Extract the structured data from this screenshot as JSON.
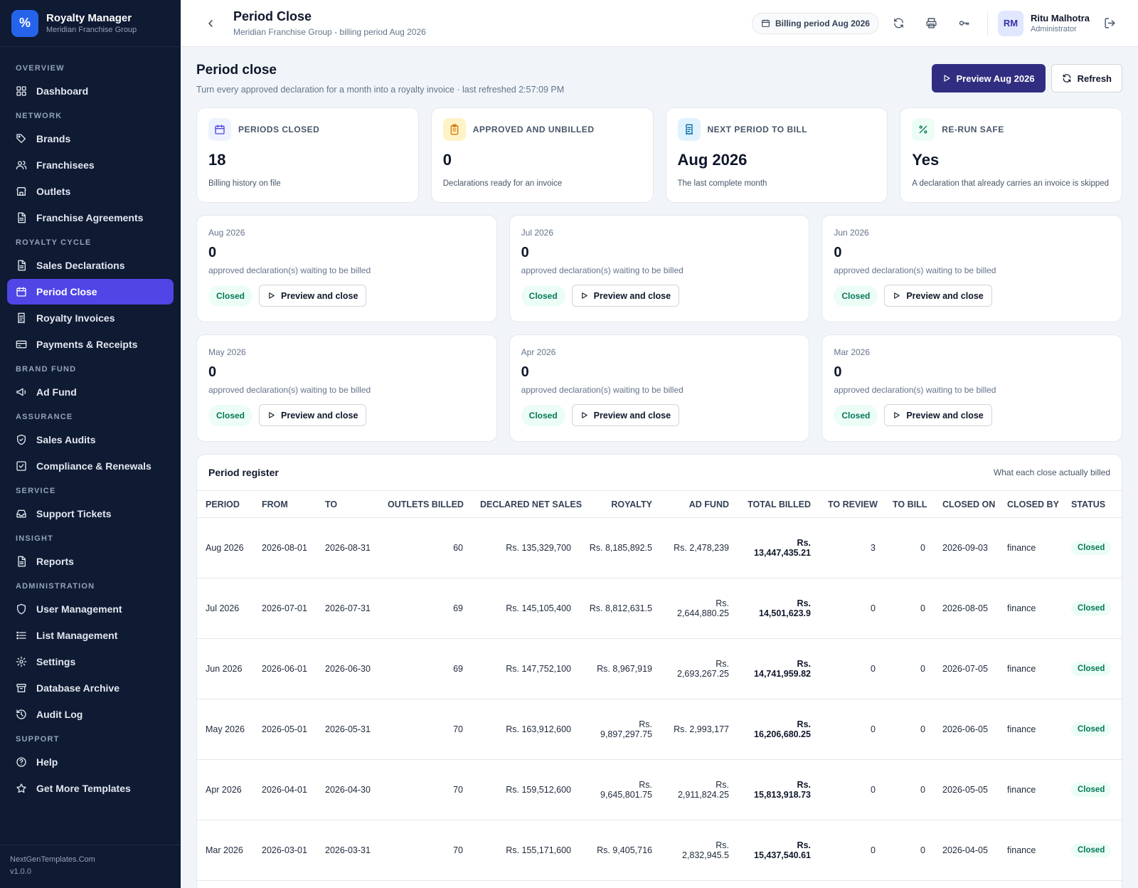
{
  "app": {
    "name": "Royalty Manager",
    "org": "Meridian Franchise Group",
    "logo_glyph": "%"
  },
  "sidebar": {
    "sections": [
      {
        "title": "OVERVIEW",
        "items": [
          {
            "label": "Dashboard",
            "icon": "grid-icon"
          }
        ]
      },
      {
        "title": "NETWORK",
        "items": [
          {
            "label": "Brands",
            "icon": "tag-icon"
          },
          {
            "label": "Franchisees",
            "icon": "users-icon"
          },
          {
            "label": "Outlets",
            "icon": "store-icon"
          },
          {
            "label": "Franchise Agreements",
            "icon": "document-icon"
          }
        ]
      },
      {
        "title": "ROYALTY CYCLE",
        "items": [
          {
            "label": "Sales Declarations",
            "icon": "document-icon"
          },
          {
            "label": "Period Close",
            "icon": "calendar-icon",
            "active": true
          },
          {
            "label": "Royalty Invoices",
            "icon": "receipt-icon"
          },
          {
            "label": "Payments & Receipts",
            "icon": "card-icon"
          }
        ]
      },
      {
        "title": "BRAND FUND",
        "items": [
          {
            "label": "Ad Fund",
            "icon": "megaphone-icon"
          }
        ]
      },
      {
        "title": "ASSURANCE",
        "items": [
          {
            "label": "Sales Audits",
            "icon": "shield-check-icon"
          },
          {
            "label": "Compliance & Renewals",
            "icon": "check-square-icon"
          }
        ]
      },
      {
        "title": "SERVICE",
        "items": [
          {
            "label": "Support Tickets",
            "icon": "inbox-icon"
          }
        ]
      },
      {
        "title": "INSIGHT",
        "items": [
          {
            "label": "Reports",
            "icon": "document-icon"
          }
        ]
      },
      {
        "title": "ADMINISTRATION",
        "items": [
          {
            "label": "User Management",
            "icon": "shield-icon"
          },
          {
            "label": "List Management",
            "icon": "list-icon"
          },
          {
            "label": "Settings",
            "icon": "gear-icon"
          },
          {
            "label": "Database Archive",
            "icon": "archive-icon"
          },
          {
            "label": "Audit Log",
            "icon": "history-icon"
          }
        ]
      },
      {
        "title": "SUPPORT",
        "items": [
          {
            "label": "Help",
            "icon": "help-icon"
          },
          {
            "label": "Get More Templates",
            "icon": "star-icon"
          }
        ]
      }
    ],
    "footer": {
      "site": "NextGenTemplates.Com",
      "version": "v1.0.0"
    }
  },
  "topbar": {
    "title": "Period Close",
    "subtitle": "Meridian Franchise Group - billing period Aug 2026",
    "period_pill": "Billing period Aug 2026",
    "user": {
      "initials": "RM",
      "name": "Ritu Malhotra",
      "role": "Administrator"
    }
  },
  "page": {
    "title": "Period close",
    "subtitle": "Turn every approved declaration for a month into a royalty invoice · last refreshed 2:57:09 PM",
    "preview_button": "Preview Aug 2026",
    "refresh_button": "Refresh"
  },
  "stats": [
    {
      "label": "PERIODS CLOSED",
      "value": "18",
      "note": "Billing history on file",
      "icon": "calendar-icon",
      "color": "#4f46e5",
      "bg": "#eef2ff"
    },
    {
      "label": "APPROVED AND UNBILLED",
      "value": "0",
      "note": "Declarations ready for an invoice",
      "icon": "clipboard-icon",
      "color": "#d97706",
      "bg": "#fef3c7"
    },
    {
      "label": "NEXT PERIOD TO BILL",
      "value": "Aug 2026",
      "note": "The last complete month",
      "icon": "receipt-icon",
      "color": "#0369a1",
      "bg": "#e0f2fe"
    },
    {
      "label": "RE-RUN SAFE",
      "value": "Yes",
      "note": "A declaration that already carries an invoice is skipped",
      "icon": "percent-icon",
      "color": "#047857",
      "bg": "#ecfdf5"
    }
  ],
  "period_cards": [
    {
      "period": "Aug 2026",
      "count": "0",
      "note": "approved declaration(s) waiting to be billed",
      "status": "Closed",
      "action": "Preview and close"
    },
    {
      "period": "Jul 2026",
      "count": "0",
      "note": "approved declaration(s) waiting to be billed",
      "status": "Closed",
      "action": "Preview and close"
    },
    {
      "period": "Jun 2026",
      "count": "0",
      "note": "approved declaration(s) waiting to be billed",
      "status": "Closed",
      "action": "Preview and close"
    },
    {
      "period": "May 2026",
      "count": "0",
      "note": "approved declaration(s) waiting to be billed",
      "status": "Closed",
      "action": "Preview and close"
    },
    {
      "period": "Apr 2026",
      "count": "0",
      "note": "approved declaration(s) waiting to be billed",
      "status": "Closed",
      "action": "Preview and close"
    },
    {
      "period": "Mar 2026",
      "count": "0",
      "note": "approved declaration(s) waiting to be billed",
      "status": "Closed",
      "action": "Preview and close"
    }
  ],
  "register": {
    "title": "Period register",
    "note": "What each close actually billed",
    "columns": [
      "PERIOD",
      "FROM",
      "TO",
      "OUTLETS BILLED",
      "DECLARED NET SALES",
      "ROYALTY",
      "AD FUND",
      "TOTAL BILLED",
      "TO REVIEW",
      "TO BILL",
      "CLOSED ON",
      "CLOSED BY",
      "STATUS"
    ],
    "rows": [
      {
        "period": "Aug 2026",
        "from": "2026-08-01",
        "to": "2026-08-31",
        "outlets": "60",
        "net_sales": "Rs. 135,329,700",
        "royalty": "Rs. 8,185,892.5",
        "ad_fund": "Rs. 2,478,239",
        "total": "Rs. 13,447,435.21",
        "review": "3",
        "bill": "0",
        "closed_on": "2026-09-03",
        "closed_by": "finance",
        "status": "Closed"
      },
      {
        "period": "Jul 2026",
        "from": "2026-07-01",
        "to": "2026-07-31",
        "outlets": "69",
        "net_sales": "Rs. 145,105,400",
        "royalty": "Rs. 8,812,631.5",
        "ad_fund": "Rs. 2,644,880.25",
        "total": "Rs. 14,501,623.9",
        "review": "0",
        "bill": "0",
        "closed_on": "2026-08-05",
        "closed_by": "finance",
        "status": "Closed"
      },
      {
        "period": "Jun 2026",
        "from": "2026-06-01",
        "to": "2026-06-30",
        "outlets": "69",
        "net_sales": "Rs. 147,752,100",
        "royalty": "Rs. 8,967,919",
        "ad_fund": "Rs. 2,693,267.25",
        "total": "Rs. 14,741,959.82",
        "review": "0",
        "bill": "0",
        "closed_on": "2026-07-05",
        "closed_by": "finance",
        "status": "Closed"
      },
      {
        "period": "May 2026",
        "from": "2026-05-01",
        "to": "2026-05-31",
        "outlets": "70",
        "net_sales": "Rs. 163,912,600",
        "royalty": "Rs. 9,897,297.75",
        "ad_fund": "Rs. 2,993,177",
        "total": "Rs. 16,206,680.25",
        "review": "0",
        "bill": "0",
        "closed_on": "2026-06-05",
        "closed_by": "finance",
        "status": "Closed"
      },
      {
        "period": "Apr 2026",
        "from": "2026-04-01",
        "to": "2026-04-30",
        "outlets": "70",
        "net_sales": "Rs. 159,512,600",
        "royalty": "Rs. 9,645,801.75",
        "ad_fund": "Rs. 2,911,824.25",
        "total": "Rs. 15,813,918.73",
        "review": "0",
        "bill": "0",
        "closed_on": "2026-05-05",
        "closed_by": "finance",
        "status": "Closed"
      },
      {
        "period": "Mar 2026",
        "from": "2026-03-01",
        "to": "2026-03-31",
        "outlets": "70",
        "net_sales": "Rs. 155,171,600",
        "royalty": "Rs. 9,405,716",
        "ad_fund": "Rs. 2,832,945.5",
        "total": "Rs. 15,437,540.61",
        "review": "0",
        "bill": "0",
        "closed_on": "2026-04-05",
        "closed_by": "finance",
        "status": "Closed"
      }
    ]
  }
}
